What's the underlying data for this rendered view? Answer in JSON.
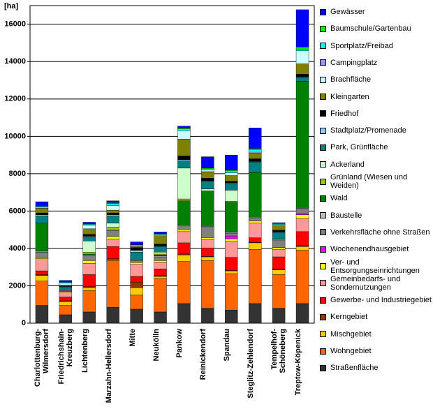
{
  "chart_data": {
    "type": "stacked-bar",
    "y_label": "[ha]",
    "categories": [
      "Charlottenburg-\nWilmersdorf",
      "Friedrichshain-\nKreuzberg",
      "Lichtenberg",
      "Marzahn-Hellersdorf",
      "Mitte",
      "Neukölln",
      "Pankow",
      "Reinickendorf",
      "Spandau",
      "Steglitz-Zehlendorf",
      "Tempelhof-\nSchöneberg",
      "Treptow-Köpenick"
    ],
    "ylim": [
      0,
      17000
    ],
    "yticks": [
      0,
      2000,
      4000,
      6000,
      8000,
      10000,
      12000,
      14000,
      16000
    ],
    "grid": true,
    "series": [
      {
        "name": "Straßenfläche",
        "color": "#333333",
        "values": [
          950,
          450,
          600,
          850,
          750,
          600,
          1050,
          800,
          700,
          1050,
          800,
          1050
        ]
      },
      {
        "name": "Wohngebiet",
        "color": "#ff6600",
        "values": [
          1300,
          500,
          1150,
          2500,
          750,
          1800,
          2250,
          2550,
          1950,
          2900,
          1800,
          2850
        ]
      },
      {
        "name": "Mischgebiet",
        "color": "#ffcc00",
        "values": [
          300,
          200,
          150,
          50,
          400,
          100,
          350,
          200,
          150,
          350,
          250,
          200
        ]
      },
      {
        "name": "Kerngebiet",
        "color": "#993300",
        "values": [
          50,
          50,
          50,
          50,
          300,
          50,
          50,
          30,
          20,
          20,
          50,
          50
        ]
      },
      {
        "name": "Gewerbe- und Industriegebiet",
        "color": "#ff0000",
        "values": [
          200,
          200,
          650,
          650,
          300,
          350,
          600,
          450,
          700,
          250,
          650,
          750
        ]
      },
      {
        "name": "Gemeinbedarfs- und\nSondernutzungen",
        "color": "#ff9999",
        "values": [
          650,
          250,
          600,
          400,
          650,
          350,
          600,
          450,
          850,
          800,
          400,
          700
        ]
      },
      {
        "name": "Ver- und\nEntsorgungseinrichtungen",
        "color": "#ffff00",
        "values": [
          50,
          50,
          150,
          150,
          100,
          100,
          100,
          100,
          150,
          100,
          100,
          200
        ]
      },
      {
        "name": "Wochenendhausgebiet",
        "color": "#ff00ff",
        "values": [
          0,
          0,
          0,
          0,
          0,
          0,
          0,
          0,
          150,
          0,
          0,
          50
        ]
      },
      {
        "name": "Verkehrsfläche ohne Straßen",
        "color": "#808080",
        "values": [
          300,
          50,
          250,
          300,
          100,
          200,
          200,
          550,
          150,
          150,
          400,
          250
        ]
      },
      {
        "name": "Baustelle",
        "color": "#c0c0c0",
        "values": [
          50,
          30,
          50,
          50,
          50,
          50,
          50,
          50,
          50,
          50,
          50,
          50
        ]
      },
      {
        "name": "Wald",
        "color": "#008000",
        "values": [
          1500,
          0,
          50,
          0,
          0,
          50,
          1300,
          1900,
          1600,
          2400,
          0,
          6800
        ]
      },
      {
        "name": "Grünland (Wiesen und Weiden)",
        "color": "#99cc00",
        "values": [
          0,
          0,
          100,
          150,
          0,
          50,
          100,
          0,
          50,
          0,
          0,
          0
        ]
      },
      {
        "name": "Ackerland",
        "color": "#ccffcc",
        "values": [
          0,
          0,
          600,
          200,
          0,
          100,
          1650,
          100,
          600,
          0,
          0,
          0
        ]
      },
      {
        "name": "Park, Grünfläche",
        "color": "#008080",
        "values": [
          400,
          150,
          200,
          400,
          400,
          300,
          400,
          400,
          350,
          550,
          350,
          200
        ]
      },
      {
        "name": "Stadtplatz/Promenade",
        "color": "#99ccff",
        "values": [
          50,
          30,
          50,
          50,
          100,
          30,
          50,
          30,
          30,
          30,
          30,
          30
        ]
      },
      {
        "name": "Friedhof",
        "color": "#000000",
        "values": [
          100,
          30,
          100,
          100,
          150,
          100,
          200,
          150,
          100,
          150,
          100,
          150
        ]
      },
      {
        "name": "Kleingarten",
        "color": "#808000",
        "values": [
          250,
          50,
          300,
          150,
          50,
          450,
          900,
          350,
          300,
          300,
          250,
          550
        ]
      },
      {
        "name": "Brachfläche",
        "color": "#ccffff",
        "values": [
          0,
          100,
          200,
          250,
          50,
          50,
          450,
          100,
          150,
          50,
          50,
          700
        ]
      },
      {
        "name": "Campingplatz",
        "color": "#9999ff",
        "values": [
          0,
          0,
          0,
          0,
          0,
          0,
          0,
          0,
          0,
          0,
          0,
          0
        ]
      },
      {
        "name": "Sportplatz/Freibad",
        "color": "#00ffff",
        "values": [
          100,
          50,
          50,
          100,
          50,
          50,
          100,
          50,
          100,
          150,
          50,
          100
        ]
      },
      {
        "name": "Baumschule/Gartenbau",
        "color": "#00ff00",
        "values": [
          0,
          0,
          0,
          50,
          0,
          0,
          50,
          50,
          50,
          50,
          0,
          100
        ]
      },
      {
        "name": "Gewässer",
        "color": "#0000ff",
        "values": [
          250,
          100,
          100,
          100,
          150,
          100,
          100,
          600,
          800,
          1100,
          50,
          2000
        ]
      }
    ]
  }
}
